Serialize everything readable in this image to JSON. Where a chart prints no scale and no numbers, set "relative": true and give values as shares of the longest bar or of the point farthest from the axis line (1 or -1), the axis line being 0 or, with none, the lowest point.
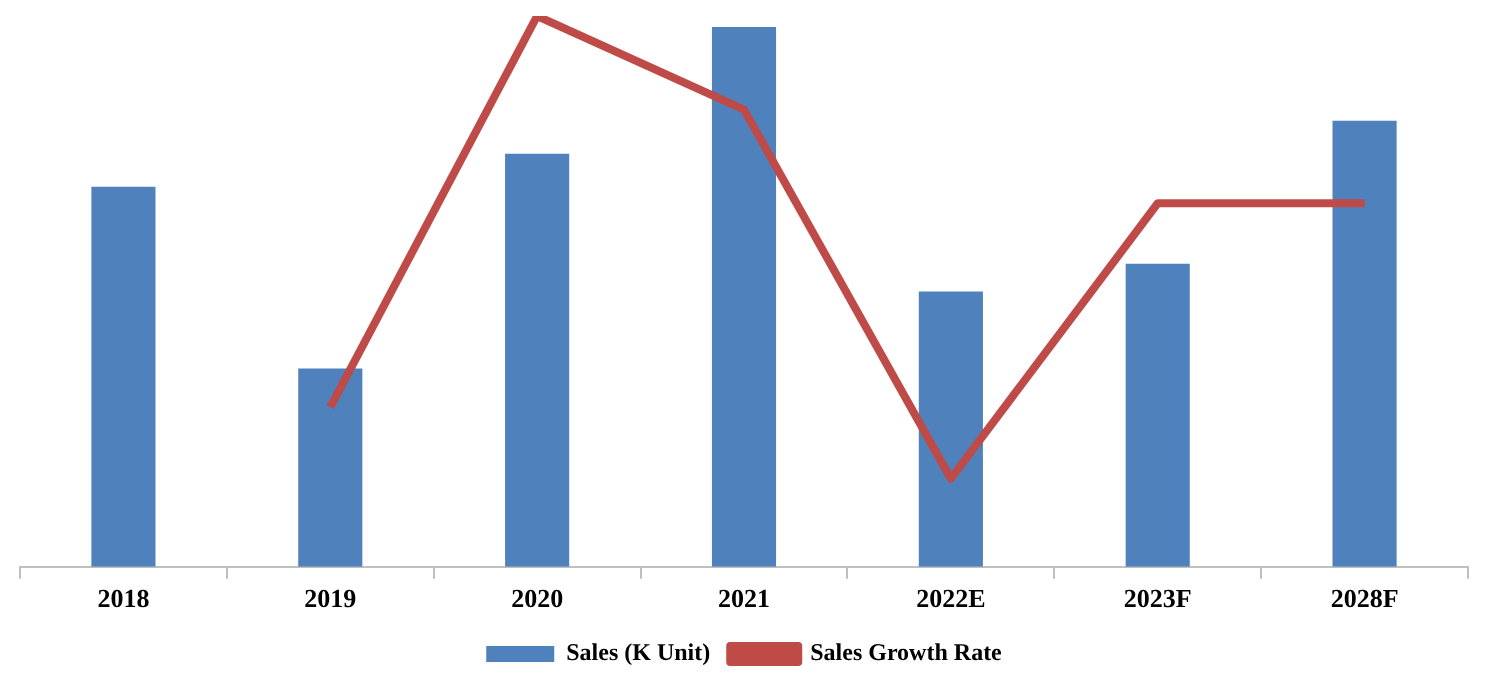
{
  "chart_data": {
    "type": "bar",
    "relative": true,
    "categories": [
      "2018",
      "2019",
      "2020",
      "2021",
      "2022E",
      "2023F",
      "2028F"
    ],
    "series": [
      {
        "name": "Sales (K Unit)",
        "color": "#4f81bd",
        "values": [
          0.69,
          0.36,
          0.75,
          0.98,
          0.5,
          0.55,
          0.81
        ]
      },
      {
        "name": "Sales Growth Rate",
        "type": "line",
        "color": "#be4b48",
        "values": [
          null,
          0.29,
          1,
          0.83,
          0.16,
          0.66,
          0.66
        ]
      }
    ],
    "legend": "bottom",
    "grid": false,
    "marker": "none"
  }
}
